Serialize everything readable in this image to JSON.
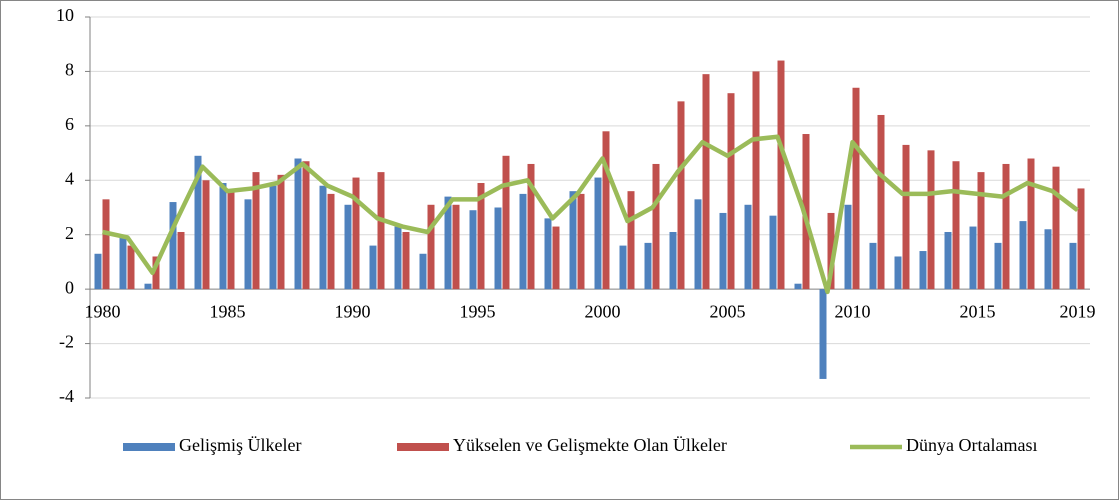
{
  "chart_data": {
    "type": "bar_line",
    "categories": [
      "1980",
      null,
      null,
      null,
      null,
      "1985",
      null,
      null,
      null,
      null,
      "1990",
      null,
      null,
      null,
      null,
      "1995",
      null,
      null,
      null,
      null,
      "2000",
      null,
      null,
      null,
      null,
      "2005",
      null,
      null,
      null,
      null,
      "2010",
      null,
      null,
      null,
      null,
      "2015",
      null,
      null,
      null,
      "2019"
    ],
    "series": [
      {
        "name": "Gelişmiş Ülkeler",
        "type": "bar",
        "color": "#4f81bd",
        "values": [
          1.3,
          1.9,
          0.2,
          3.2,
          4.9,
          3.9,
          3.3,
          3.8,
          4.8,
          3.8,
          3.1,
          1.6,
          2.3,
          1.3,
          3.4,
          2.9,
          3.0,
          3.5,
          2.6,
          3.6,
          4.1,
          1.6,
          1.7,
          2.1,
          3.3,
          2.8,
          3.1,
          2.7,
          0.2,
          -3.3,
          3.1,
          1.7,
          1.2,
          1.4,
          2.1,
          2.3,
          1.7,
          2.5,
          2.2,
          1.7
        ]
      },
      {
        "name": "Yükselen ve Gelişmekte Olan Ülkeler",
        "type": "bar",
        "color": "#c0504d",
        "values": [
          3.3,
          1.6,
          1.2,
          2.1,
          4.0,
          3.6,
          4.3,
          4.2,
          4.7,
          3.5,
          4.1,
          4.3,
          2.1,
          3.1,
          3.1,
          3.9,
          4.9,
          4.6,
          2.3,
          3.5,
          5.8,
          3.6,
          4.6,
          6.9,
          7.9,
          7.2,
          8.0,
          8.4,
          5.7,
          2.8,
          7.4,
          6.4,
          5.3,
          5.1,
          4.7,
          4.3,
          4.6,
          4.8,
          4.5,
          3.7
        ]
      },
      {
        "name": "Dünya Ortalaması",
        "type": "line",
        "color": "#9bbb59",
        "values": [
          2.1,
          1.9,
          0.6,
          2.6,
          4.5,
          3.6,
          3.7,
          3.9,
          4.6,
          3.8,
          3.4,
          2.6,
          2.3,
          2.1,
          3.3,
          3.3,
          3.8,
          4.0,
          2.6,
          3.5,
          4.8,
          2.5,
          3.0,
          4.3,
          5.4,
          4.9,
          5.5,
          5.6,
          3.0,
          -0.1,
          5.4,
          4.3,
          3.5,
          3.5,
          3.6,
          3.5,
          3.4,
          3.9,
          3.6,
          2.9
        ]
      }
    ],
    "ylim": [
      -4,
      10
    ],
    "yticks": [
      -4,
      -2,
      0,
      2,
      4,
      6,
      8,
      10
    ],
    "negative_tick_color": "#ff0000",
    "grid": true,
    "legend": "bottom"
  }
}
